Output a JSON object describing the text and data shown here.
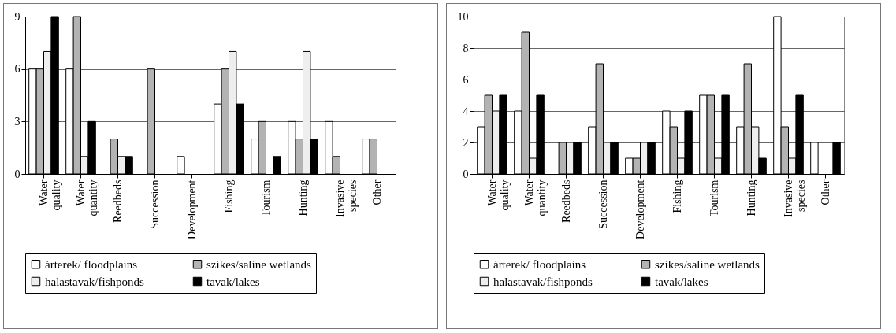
{
  "chart_data": [
    {
      "type": "bar",
      "categories": [
        "Water quality",
        "Water quantity",
        "Reedbeds",
        "Succession",
        "Development",
        "Fishing",
        "Tourism",
        "Hunting",
        "Invasive species",
        "Other"
      ],
      "series": [
        {
          "name": "árterek/ floodplains",
          "color": "#ffffff",
          "values": [
            6,
            6,
            null,
            null,
            1,
            4,
            2,
            3,
            3,
            2
          ]
        },
        {
          "name": "szikes/saline wetlands",
          "color": "#b3b3b3",
          "values": [
            6,
            9,
            2,
            6,
            null,
            6,
            3,
            2,
            1,
            2
          ]
        },
        {
          "name": "halastavak/fishponds",
          "color": "#eeeeee",
          "values": [
            7,
            1,
            1,
            null,
            null,
            7,
            null,
            7,
            null,
            null
          ]
        },
        {
          "name": "tavak/lakes",
          "color": "#000000",
          "values": [
            9,
            3,
            1,
            null,
            null,
            4,
            1,
            2,
            null,
            null
          ]
        }
      ],
      "ylim": [
        0,
        9
      ],
      "yticks": [
        0,
        3,
        6,
        9
      ],
      "grid": "y",
      "legend": "bottom"
    },
    {
      "type": "bar",
      "categories": [
        "Water quality",
        "Water quantity",
        "Reedbeds",
        "Succession",
        "Development",
        "Fishing",
        "Tourism",
        "Hunting",
        "Invasive species",
        "Other"
      ],
      "series": [
        {
          "name": "árterek/ floodplains",
          "color": "#ffffff",
          "values": [
            3,
            4,
            null,
            3,
            1,
            4,
            5,
            3,
            10,
            2
          ]
        },
        {
          "name": "szikes/saline wetlands",
          "color": "#b3b3b3",
          "values": [
            5,
            9,
            2,
            7,
            1,
            3,
            5,
            7,
            3,
            null
          ]
        },
        {
          "name": "halastavak/fishponds",
          "color": "#eeeeee",
          "values": [
            4,
            1,
            2,
            2,
            2,
            1,
            1,
            3,
            1,
            null
          ]
        },
        {
          "name": "tavak/lakes",
          "color": "#000000",
          "values": [
            5,
            5,
            2,
            2,
            2,
            4,
            5,
            1,
            5,
            2
          ]
        }
      ],
      "ylim": [
        0,
        10
      ],
      "yticks": [
        0,
        2,
        4,
        6,
        8,
        10
      ],
      "grid": "y",
      "legend": "bottom"
    }
  ]
}
